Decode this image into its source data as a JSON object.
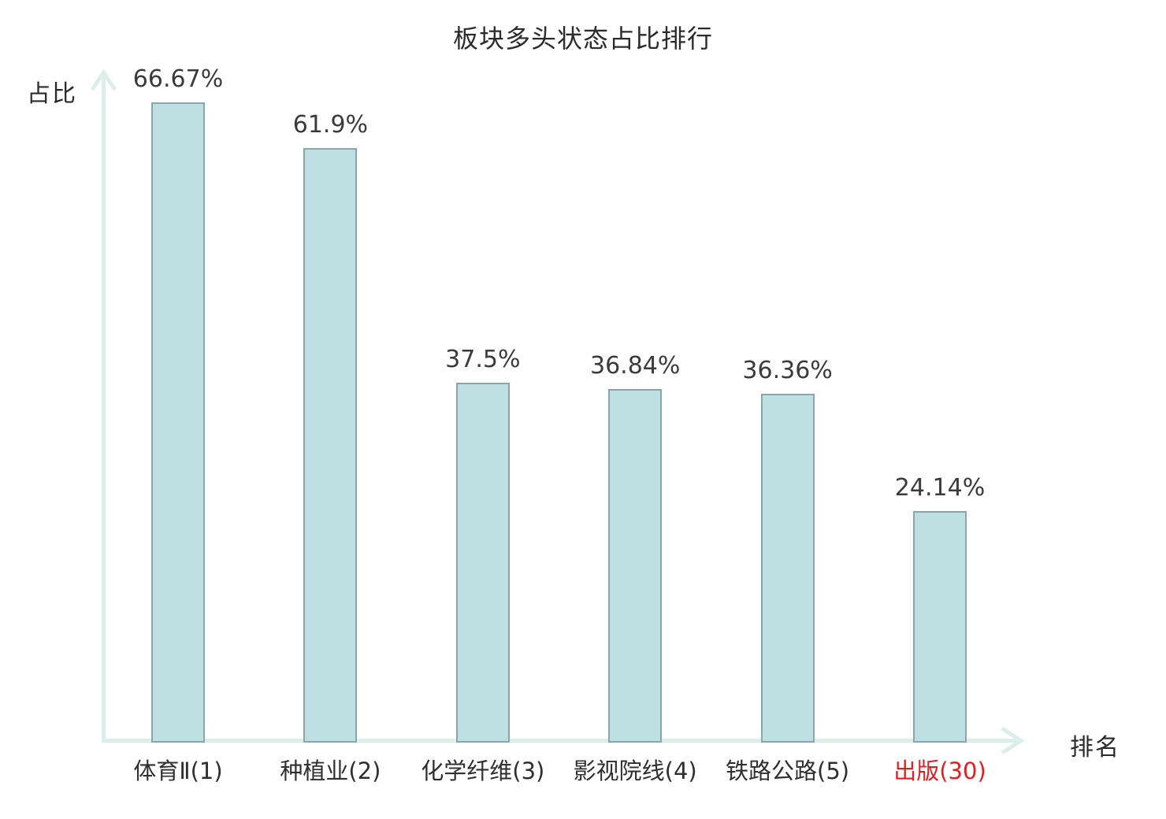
{
  "chart_data": {
    "type": "bar",
    "title": "板块多头状态占比排行",
    "xlabel": "排名",
    "ylabel": "占比",
    "categories": [
      "体育Ⅱ(1)",
      "种植业(2)",
      "化学纤维(3)",
      "影视院线(4)",
      "铁路公路(5)",
      "出版(30)"
    ],
    "values": [
      66.67,
      61.9,
      37.5,
      36.84,
      36.36,
      24.14
    ],
    "value_labels": [
      "66.67%",
      "61.9%",
      "37.5%",
      "36.84%",
      "36.36%",
      "24.14%"
    ],
    "highlight_index": 5,
    "ylim": [
      0,
      70
    ],
    "grid": false,
    "legend": false,
    "colors": {
      "bar_fill": "#bfe0e3",
      "bar_border": "#8aa6a9",
      "axis": "#dceeea",
      "value_text": "#3b3b3b",
      "title_text": "#2b2b2b",
      "category_text": "#2f2f2f",
      "highlight_text": "#e02020"
    }
  }
}
